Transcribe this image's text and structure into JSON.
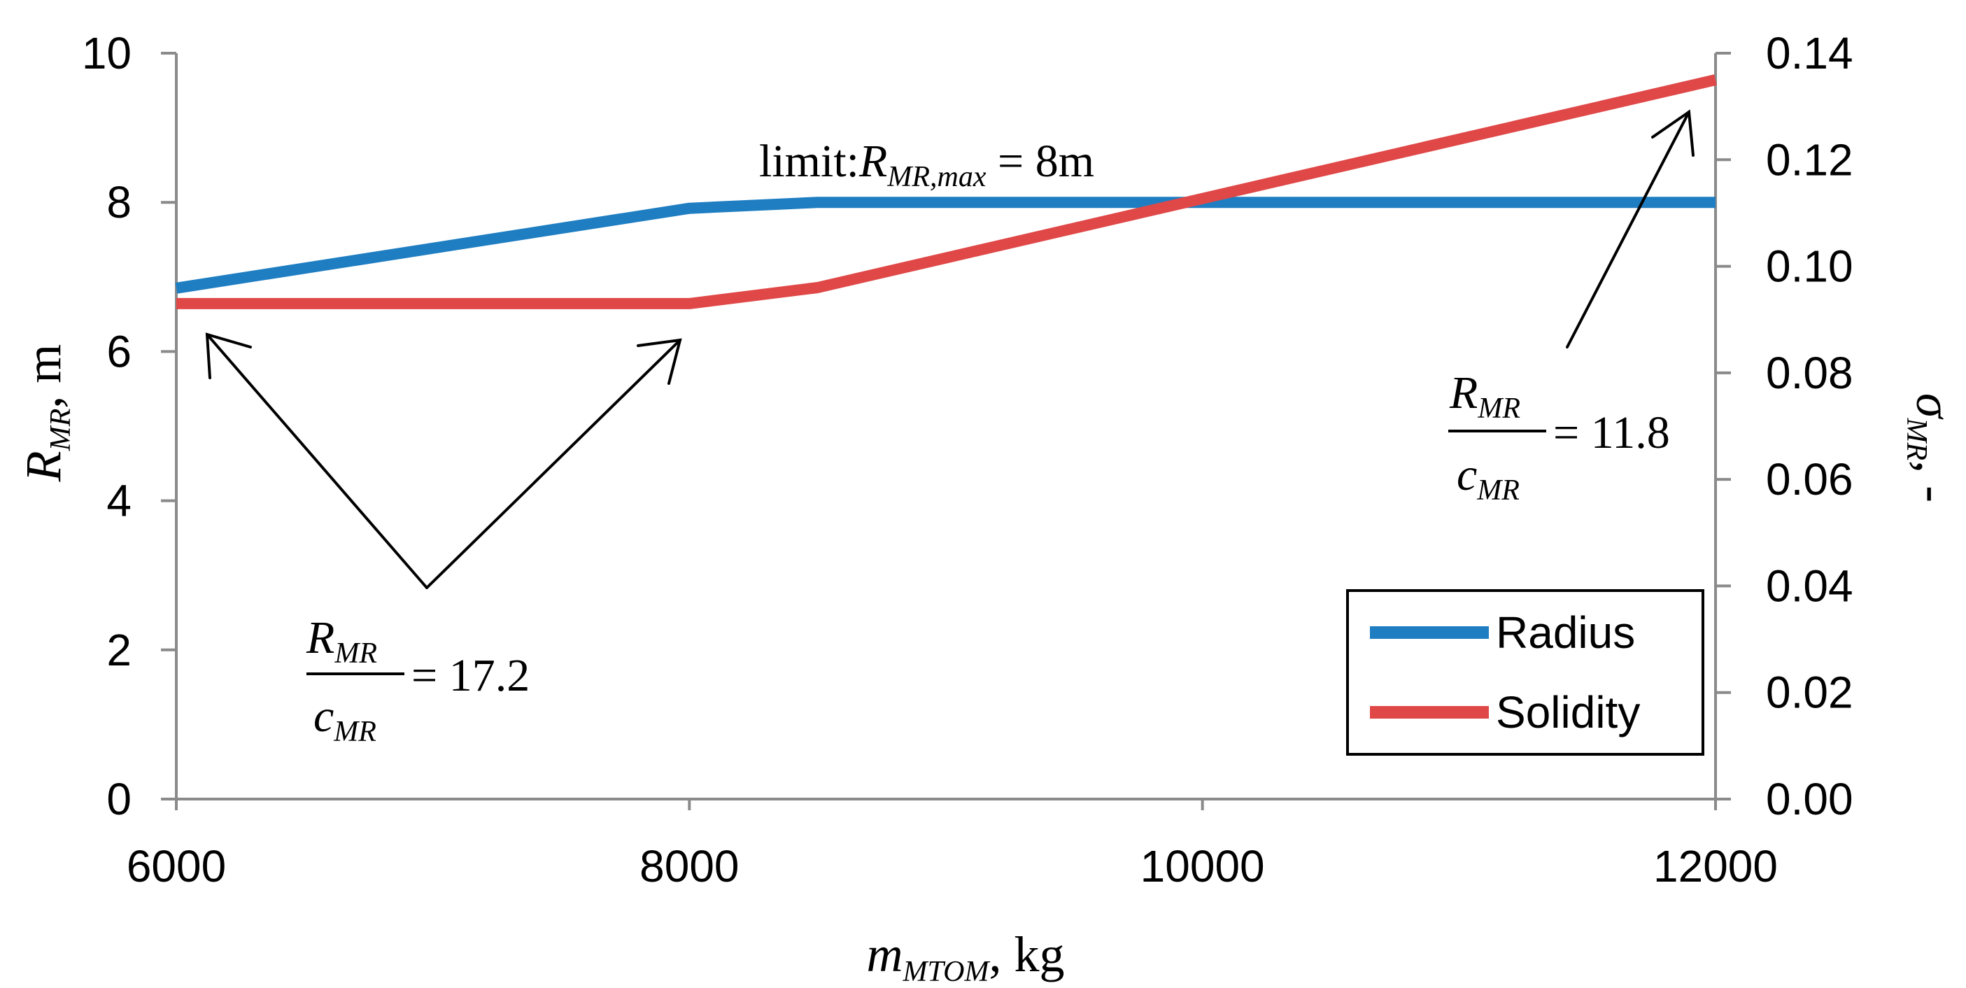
{
  "chart_data": {
    "type": "line",
    "x": [
      6000,
      8000,
      8500,
      12000
    ],
    "series": [
      {
        "name": "Radius",
        "axis": "left",
        "color": "#1f7ec2",
        "values": [
          6.85,
          7.92,
          8.0,
          8.0
        ]
      },
      {
        "name": "Solidity",
        "axis": "right",
        "color": "#e04848",
        "values": [
          0.093,
          0.093,
          0.096,
          0.135
        ]
      }
    ],
    "xlim": [
      6000,
      12000
    ],
    "ylim_left": [
      0,
      10
    ],
    "ylim_right": [
      0,
      0.14
    ],
    "x_ticks": [
      "6000",
      "8000",
      "10000",
      "12000"
    ],
    "x_tick_values": [
      6000,
      8000,
      10000,
      12000
    ],
    "y_left_ticks": [
      "0",
      "2",
      "4",
      "6",
      "8",
      "10"
    ],
    "y_left_tick_values": [
      0,
      2,
      4,
      6,
      8,
      10
    ],
    "y_right_ticks": [
      "0.00",
      "0.02",
      "0.04",
      "0.06",
      "0.08",
      "0.10",
      "0.12",
      "0.14"
    ],
    "y_right_tick_values": [
      0,
      0.02,
      0.04,
      0.06,
      0.08,
      0.1,
      0.12,
      0.14
    ],
    "xlabel": {
      "main": "m",
      "sub": "MTOM",
      "unit": ", kg"
    },
    "ylabel_left": {
      "main": "R",
      "sub": "MR",
      "unit": ", m"
    },
    "ylabel_right": {
      "main": "σ",
      "sub": "MR",
      "unit": ", -"
    },
    "legend": {
      "position": "bottom-right",
      "entries": [
        "Radius",
        "Solidity"
      ]
    },
    "annotations": {
      "limit": {
        "prefix": "limit:",
        "main": "R",
        "sub": "MR,max",
        "suffix": " = 8m"
      },
      "ratio_low": {
        "num": "R",
        "num_sub": "MR",
        "den": "c",
        "den_sub": "MR",
        "value": "= 17.2"
      },
      "ratio_high": {
        "num": "R",
        "num_sub": "MR",
        "den": "c",
        "den_sub": "MR",
        "value": "= 11.8"
      }
    }
  }
}
